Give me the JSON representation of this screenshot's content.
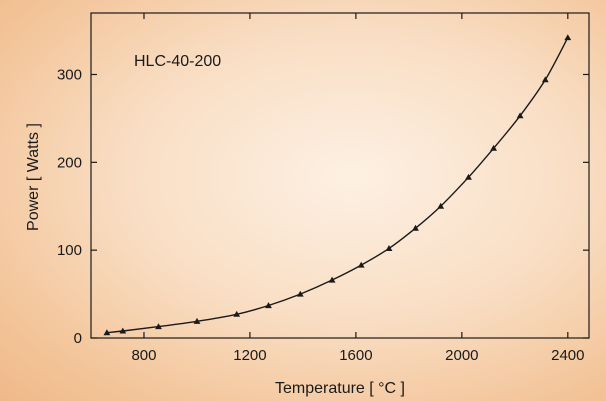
{
  "chart_data": {
    "type": "line",
    "title": "",
    "annotation": "HLC-40-200",
    "xlabel": "Temperature [ °C ]",
    "ylabel": "Power [ Watts ]",
    "xlim": [
      600,
      2480
    ],
    "ylim": [
      0,
      370
    ],
    "xticks": [
      800,
      1200,
      1600,
      2000,
      2400
    ],
    "yticks": [
      0,
      100,
      200,
      300
    ],
    "grid": false,
    "colors": {
      "line": "#1a1a1a",
      "marker": "#1a1a1a",
      "axes": "#1a1a1a"
    },
    "series": [
      {
        "marker": "triangle",
        "x": [
          660,
          720,
          855,
          1000,
          1150,
          1270,
          1390,
          1510,
          1620,
          1725,
          1825,
          1920,
          2025,
          2120,
          2220,
          2315,
          2400
        ],
        "y": [
          6,
          8,
          13,
          19,
          27,
          37,
          50,
          66,
          83,
          102,
          125,
          150,
          183,
          216,
          253,
          294,
          342
        ]
      }
    ]
  }
}
